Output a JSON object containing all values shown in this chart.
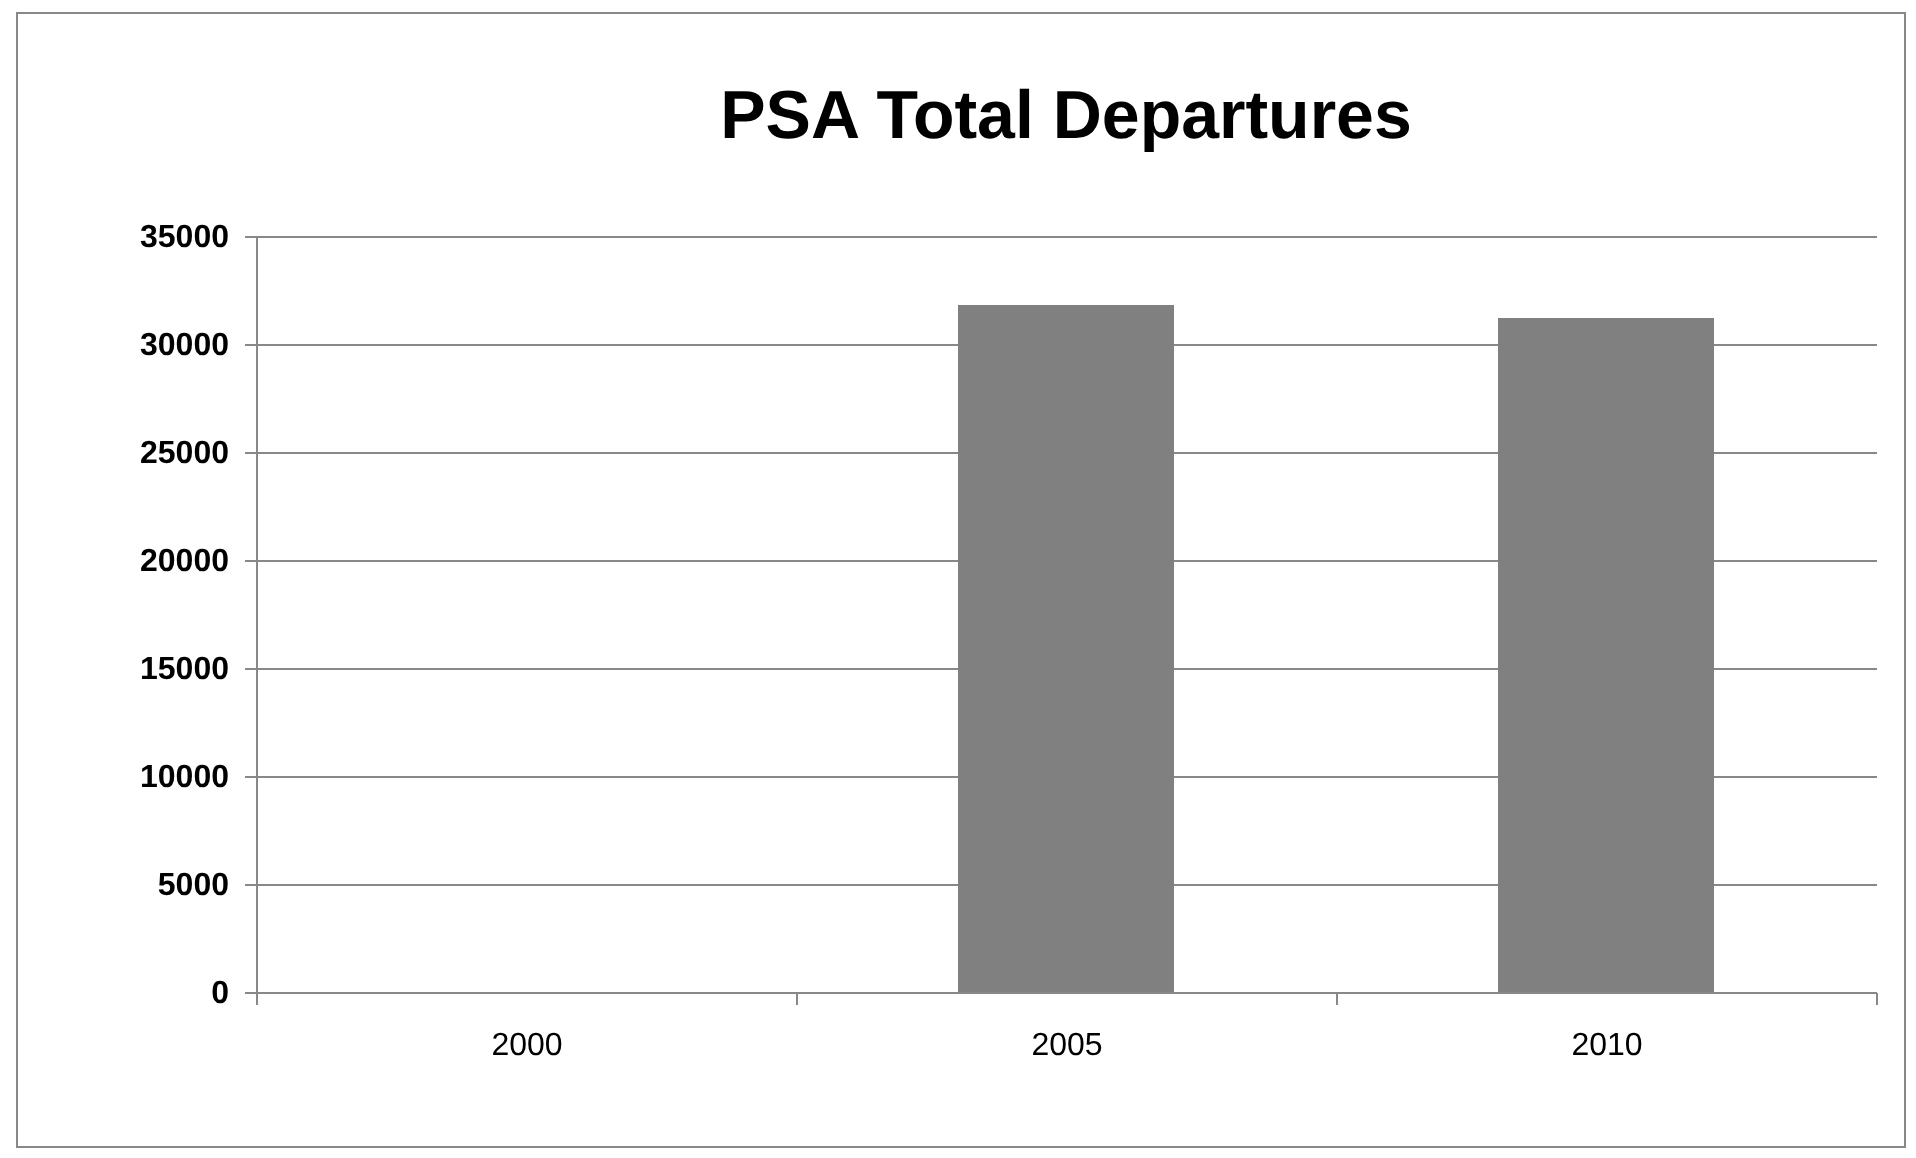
{
  "chart_data": {
    "type": "bar",
    "title": "PSA Total Departures",
    "categories": [
      "2000",
      "2005",
      "2010"
    ],
    "values": [
      null,
      31800,
      31200
    ],
    "color": "#808080",
    "ylim": [
      0,
      35000
    ],
    "yticks": [
      0,
      5000,
      10000,
      15000,
      20000,
      25000,
      30000,
      35000
    ],
    "grid": "y",
    "legend": false
  }
}
